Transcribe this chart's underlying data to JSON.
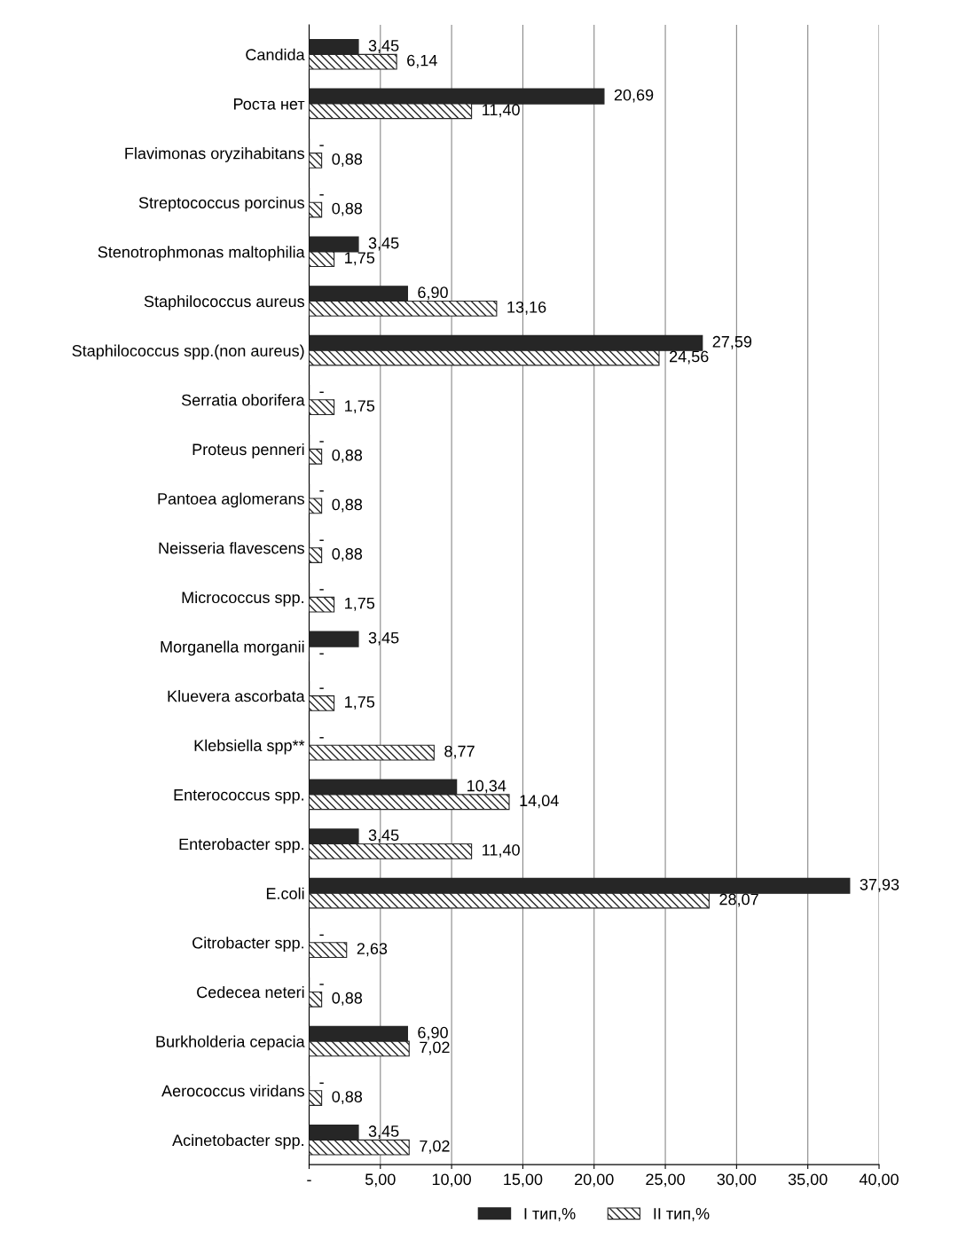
{
  "chart_data": {
    "type": "bar",
    "orientation": "horizontal",
    "categories": [
      "Candida",
      "Роста нет",
      "Flavimonas oryzihabitans",
      "Streptococcus porcinus",
      "Stenotrophmonas maltophilia",
      "Staphilococcus aureus",
      "Staphilococcus spp.(non aureus)",
      "Serratia oborifera",
      "Proteus penneri",
      "Pantoea aglomerans",
      "Neisseria flavescens",
      "Micrococcus spp.",
      "Morganella morganii",
      "Kluevera ascorbata",
      "Klebsiella spp**",
      "Enterococcus spp.",
      "Enterobacter spp.",
      "E.coli",
      "Citrobacter spp.",
      "Cedecea neteri",
      "Burkholderia cepacia",
      "Aerococcus viridans",
      "Acinetobacter spp."
    ],
    "series": [
      {
        "name": "I тип,%",
        "color": "#262626",
        "values": [
          3.45,
          20.69,
          0,
          0,
          3.45,
          6.9,
          27.59,
          0,
          0,
          0,
          0,
          0,
          3.45,
          0,
          0,
          10.34,
          3.45,
          37.93,
          0,
          0,
          6.9,
          0,
          3.45
        ],
        "value_labels": [
          "3,45",
          "20,69",
          "-",
          "-",
          "3,45",
          "6,90",
          "27,59",
          "-",
          "-",
          "-",
          "-",
          "-",
          "3,45",
          "-",
          "-",
          "10,34",
          "3,45",
          "37,93",
          "-",
          "-",
          "6,90",
          "-",
          "3,45"
        ]
      },
      {
        "name": "II тип,%",
        "color": "#262626",
        "values": [
          6.14,
          11.4,
          0.88,
          0.88,
          1.75,
          13.16,
          24.56,
          1.75,
          0.88,
          0.88,
          0.88,
          1.75,
          0,
          1.75,
          8.77,
          14.04,
          11.4,
          28.07,
          2.63,
          0.88,
          7.02,
          0.88,
          7.02
        ],
        "value_labels": [
          "6,14",
          "11,40",
          "0,88",
          "0,88",
          "1,75",
          "13,16",
          "24,56",
          "1,75",
          "0,88",
          "0,88",
          "0,88",
          "1,75",
          "-",
          "1,75",
          "8,77",
          "14,04",
          "11,40",
          "28,07",
          "2,63",
          "0,88",
          "7,02",
          "0,88",
          "7,02"
        ]
      }
    ],
    "xlim": [
      0,
      40
    ],
    "xticks": [
      {
        "value": 0,
        "label": "-"
      },
      {
        "value": 5,
        "label": "5,00"
      },
      {
        "value": 10,
        "label": "10,00"
      },
      {
        "value": 15,
        "label": "15,00"
      },
      {
        "value": 20,
        "label": "20,00"
      },
      {
        "value": 25,
        "label": "25,00"
      },
      {
        "value": 30,
        "label": "30,00"
      },
      {
        "value": 35,
        "label": "35,00"
      },
      {
        "value": 40,
        "label": "40,00"
      }
    ],
    "grid": "x",
    "legend": "bottom"
  }
}
